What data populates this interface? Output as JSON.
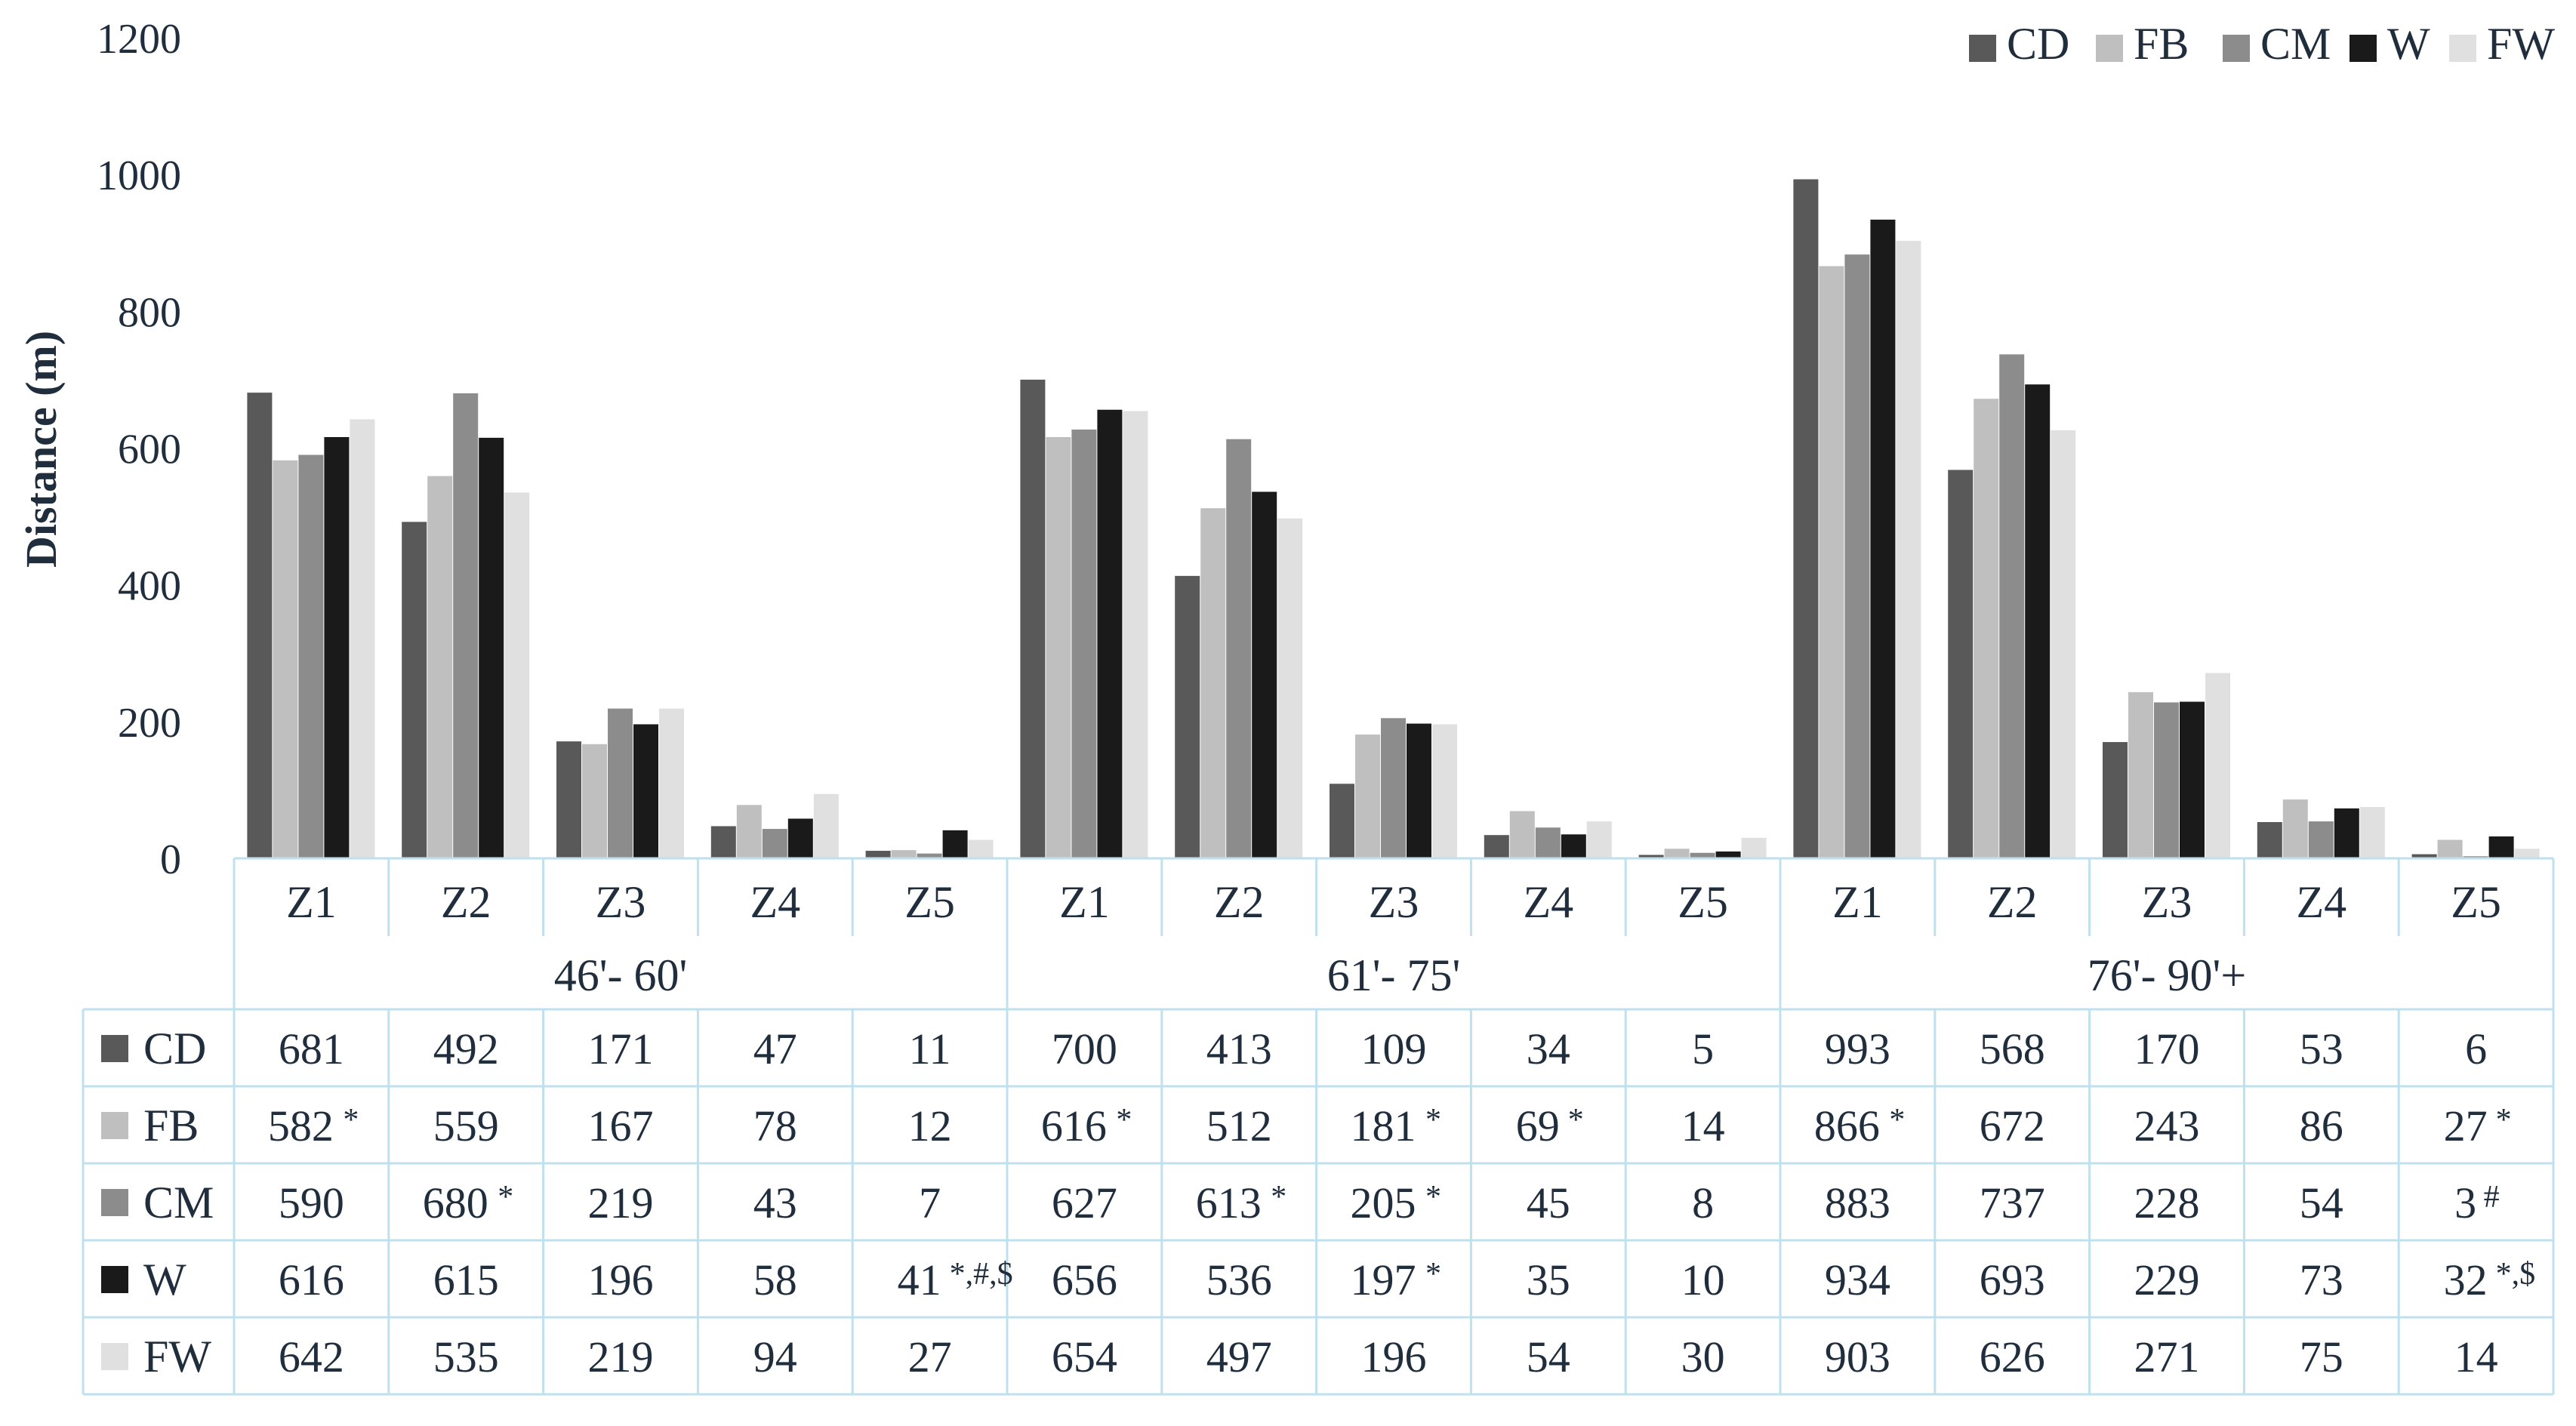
{
  "chart_data": {
    "type": "bar",
    "ylabel": "Distance (m)",
    "ylim": [
      0,
      1200
    ],
    "yticks": [
      0,
      200,
      400,
      600,
      800,
      1000,
      1200
    ],
    "grid": false,
    "legend_position": "top-right",
    "groups": [
      {
        "label": "46'- 60'",
        "zones": [
          "Z1",
          "Z2",
          "Z3",
          "Z4",
          "Z5"
        ]
      },
      {
        "label": "61'- 75'",
        "zones": [
          "Z1",
          "Z2",
          "Z3",
          "Z4",
          "Z5"
        ]
      },
      {
        "label": "76'- 90'+",
        "zones": [
          "Z1",
          "Z2",
          "Z3",
          "Z4",
          "Z5"
        ]
      }
    ],
    "series": [
      {
        "name": "CD",
        "color": "#595959",
        "values": [
          681,
          492,
          171,
          47,
          11,
          700,
          413,
          109,
          34,
          5,
          993,
          568,
          170,
          53,
          6
        ],
        "marks": [
          "",
          "",
          "",
          "",
          "",
          "",
          "",
          "",
          "",
          "",
          "",
          "",
          "",
          "",
          ""
        ]
      },
      {
        "name": "FB",
        "color": "#bfbfbf",
        "values": [
          582,
          559,
          167,
          78,
          12,
          616,
          512,
          181,
          69,
          14,
          866,
          672,
          243,
          86,
          27
        ],
        "marks": [
          "*",
          "",
          "",
          "",
          "",
          "*",
          "",
          "*",
          "*",
          "",
          "*",
          "",
          "",
          "",
          "*"
        ]
      },
      {
        "name": "CM",
        "color": "#8c8c8c",
        "values": [
          590,
          680,
          219,
          43,
          7,
          627,
          613,
          205,
          45,
          8,
          883,
          737,
          228,
          54,
          3
        ],
        "marks": [
          "",
          "*",
          "",
          "",
          "",
          "",
          "*",
          "*",
          "",
          "",
          "",
          "",
          "",
          "",
          "#"
        ]
      },
      {
        "name": "W",
        "color": "#1a1a1a",
        "values": [
          616,
          615,
          196,
          58,
          41,
          656,
          536,
          197,
          35,
          10,
          934,
          693,
          229,
          73,
          32
        ],
        "marks": [
          "",
          "",
          "",
          "",
          "*,#,$",
          "",
          "",
          "*",
          "",
          "",
          "",
          "",
          "",
          "",
          "*,$"
        ]
      },
      {
        "name": "FW",
        "color": "#e0e0e0",
        "values": [
          642,
          535,
          219,
          94,
          27,
          654,
          497,
          196,
          54,
          30,
          903,
          626,
          271,
          75,
          14
        ],
        "marks": [
          "",
          "",
          "",
          "",
          "",
          "",
          "",
          "",
          "",
          "",
          "",
          "",
          "",
          "",
          ""
        ]
      }
    ]
  }
}
